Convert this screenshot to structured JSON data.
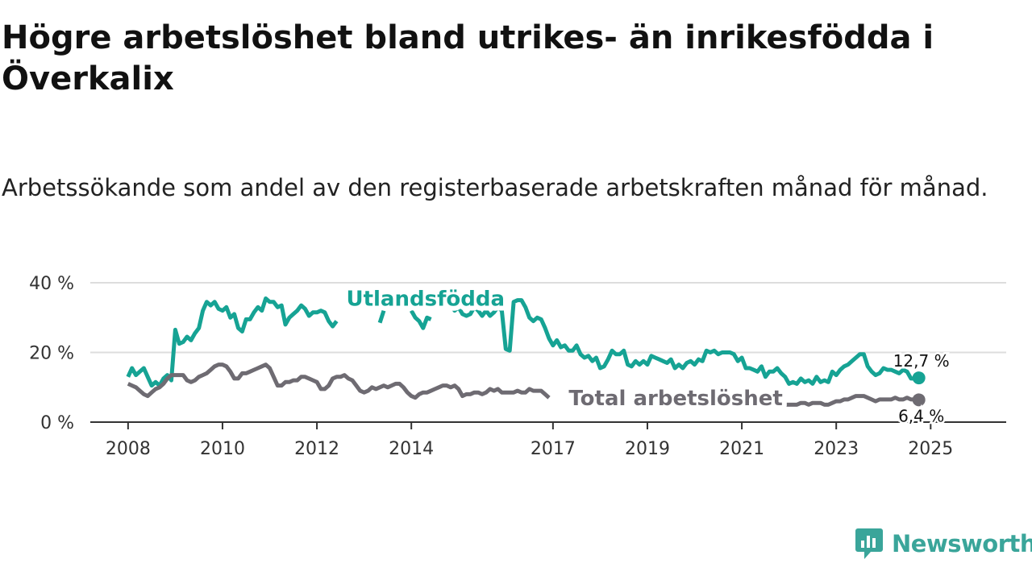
{
  "title": "Högre arbetslöshet bland utrikes- än inrikesfödda i Överkalix",
  "subtitle": "Arbetssökande som andel av den registerbaserade arbetskraften månad för månad.",
  "brand": {
    "name": "Newsworthy",
    "color": "#3aa59a",
    "icon": "newsworthy-chart-bubble-icon"
  },
  "chart_data": {
    "type": "line",
    "x_start": 2008.0,
    "x_step": 0.0833333,
    "xlim": [
      2007.2,
      2026.6
    ],
    "ylim": [
      0,
      40
    ],
    "y_ticks": [
      0,
      20,
      40
    ],
    "y_tick_labels": [
      "0 %",
      "20 %",
      "40 %"
    ],
    "x_ticks": [
      2008,
      2010,
      2012,
      2014,
      2017,
      2019,
      2021,
      2023,
      2025
    ],
    "x_tick_labels": [
      "2008",
      "2010",
      "2012",
      "2014",
      "2017",
      "2019",
      "2021",
      "2023",
      "2025"
    ],
    "grid": true,
    "series": [
      {
        "name": "Utlandsfödda",
        "color": "#16a394",
        "end_label": "12,7 %",
        "values": [
          13,
          15.5,
          13.5,
          14.5,
          15.5,
          13,
          10.5,
          11.5,
          10.5,
          12.5,
          13.5,
          12,
          26.5,
          22.5,
          23,
          24.5,
          23.5,
          25.5,
          27,
          32,
          34.5,
          33.5,
          34.5,
          32.5,
          32,
          33,
          30,
          31,
          27,
          26,
          29.5,
          29.5,
          31.5,
          33,
          32,
          35.5,
          34.5,
          34.5,
          33,
          33.5,
          28,
          30,
          31,
          32,
          33.5,
          32.5,
          30.5,
          31.5,
          31.5,
          32,
          31.5,
          29,
          27.5,
          29,
          null,
          null,
          null,
          null,
          null,
          null,
          null,
          null,
          null,
          null,
          28.5,
          32,
          null,
          null,
          null,
          null,
          null,
          null,
          32,
          30,
          29,
          27,
          30,
          29.5,
          null,
          null,
          null,
          null,
          34,
          32,
          33,
          31,
          30.5,
          31,
          33,
          32,
          30.5,
          32,
          30.5,
          31.5,
          33,
          32,
          21,
          20.5,
          34.5,
          35,
          35,
          33,
          30,
          29,
          30,
          29.5,
          27,
          24,
          22,
          23.5,
          21.5,
          22,
          20.5,
          20.5,
          22,
          19.5,
          18.5,
          19,
          17.5,
          18.5,
          15.5,
          16,
          18,
          20.5,
          19.5,
          19.5,
          20.5,
          16.5,
          16,
          17.5,
          16.5,
          17.5,
          16.5,
          19,
          18.5,
          18,
          17.5,
          17,
          18,
          15.5,
          16.5,
          15.5,
          17,
          17.5,
          16.5,
          18,
          17.5,
          20.5,
          20,
          20.5,
          19.5,
          20,
          20,
          20,
          19.5,
          17.5,
          18.5,
          15.5,
          15.5,
          15,
          14.5,
          16,
          13,
          14.5,
          14.5,
          15.5,
          14,
          13,
          11,
          11.5,
          11,
          12.5,
          11.5,
          12,
          11,
          13,
          11.5,
          12,
          11.5,
          14.5,
          13.5,
          15,
          16,
          16.5,
          17.5,
          18.5,
          19.5,
          19.5,
          16,
          14.5,
          13.5,
          14,
          15.5,
          15,
          15,
          14.5,
          14,
          15,
          14.5,
          12.5,
          12.5,
          12.7
        ]
      },
      {
        "name": "Total arbetslöshet",
        "color": "#6e6b72",
        "end_label": "6,4 %",
        "values": [
          11,
          10.5,
          10,
          9,
          8,
          7.5,
          8.5,
          9.5,
          10,
          11,
          12.5,
          13.5,
          13.5,
          13.5,
          13.5,
          12,
          11.5,
          12,
          13,
          13.5,
          14,
          15,
          16,
          16.5,
          16.5,
          16,
          14.5,
          12.5,
          12.5,
          14,
          14,
          14.5,
          15,
          15.5,
          16,
          16.5,
          15.5,
          13,
          10.5,
          10.5,
          11.5,
          11.5,
          12,
          12,
          13,
          13,
          12.5,
          12,
          11.5,
          9.5,
          9.5,
          10.5,
          12.5,
          13,
          13,
          13.5,
          12.5,
          12,
          10.5,
          9,
          8.5,
          9,
          10,
          9.5,
          10,
          10.5,
          10,
          10.5,
          11,
          11,
          10,
          8.5,
          7.5,
          7,
          8,
          8.5,
          8.5,
          9,
          9.5,
          10,
          10.5,
          10.5,
          10,
          10.5,
          9.5,
          7.5,
          8,
          8,
          8.5,
          8.5,
          8,
          8.5,
          9.5,
          9,
          9.5,
          8.5,
          8.5,
          8.5,
          8.5,
          9,
          8.5,
          8.5,
          9.5,
          9,
          9,
          9,
          8,
          7,
          null,
          null,
          null,
          null,
          null,
          null,
          null,
          null,
          null,
          null,
          null,
          null,
          null,
          null,
          null,
          null,
          null,
          null,
          null,
          null,
          null,
          null,
          null,
          null,
          null,
          null,
          null,
          null,
          null,
          null,
          null,
          null,
          null,
          null,
          null,
          null,
          null,
          null,
          null,
          null,
          null,
          null,
          null,
          null,
          null,
          null,
          null,
          null,
          null,
          null,
          null,
          null,
          null,
          null,
          7,
          6.5,
          6,
          6,
          5.5,
          5,
          5,
          5,
          5,
          5.5,
          5.5,
          5,
          5.5,
          5.5,
          5.5,
          5,
          5,
          5.5,
          6,
          6,
          6.5,
          6.5,
          7,
          7.5,
          7.5,
          7.5,
          7,
          6.5,
          6,
          6.5,
          6.5,
          6.5,
          6.5,
          7,
          6.5,
          6.5,
          7,
          6.5,
          6.5,
          6.4
        ]
      }
    ],
    "annotations": [
      {
        "text": "Utlandsfödda",
        "series": "Utlandsfödda",
        "x": 2014.3,
        "y": 35.5
      },
      {
        "text": "Total arbetslöshet",
        "series": "Total arbetslöshet",
        "x": 2019.6,
        "y": 6.9
      }
    ]
  }
}
